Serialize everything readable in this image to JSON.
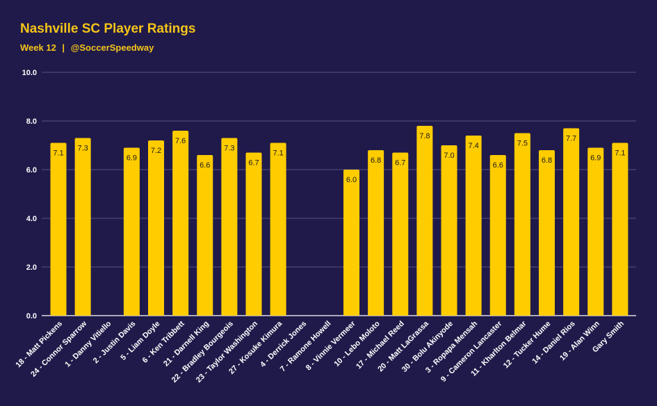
{
  "header": {
    "title": "Nashville SC Player Ratings",
    "subtitle_week": "Week 12",
    "subtitle_sep": "|",
    "subtitle_handle": "@SoccerSpeedway"
  },
  "colors": {
    "background": "#201a4a",
    "bar": "#ffcc00",
    "accent_text": "#f5c518",
    "grid": "#6b6590"
  },
  "chart_data": {
    "type": "bar",
    "title": "Nashville SC Player Ratings",
    "subtitle": "Week 12 | @SoccerSpeedway",
    "xlabel": "",
    "ylabel": "",
    "ylim": [
      0,
      10
    ],
    "yticks": [
      "0.0",
      "2.0",
      "4.0",
      "6.0",
      "8.0",
      "10.0"
    ],
    "grid": true,
    "legend": "none",
    "categories": [
      "18 - Matt Pickens",
      "24 - Connor Sparrow",
      "1 - Danny Vitiello",
      "2 - Justin Davis",
      "5 - Liam Doyle",
      "6 - Ken Tribbett",
      "21 - Darnell King",
      "22 - Bradley Bourgeois",
      "23 - Taylor Washington",
      "27 - Kosuke Kimura",
      "4 - Derrick Jones",
      "7 - Ramone Howell",
      "8 - Vinnie Vermeer",
      "10 - Lebo Moloto",
      "17 - Michael Reed",
      "20 - Matt LaGrassa",
      "30 - Bolu Akinyode",
      "3 - Ropapa Mensah",
      "9 - Cameron Lancaster",
      "11 - Kharlton Belmar",
      "12 - Tucker Hume",
      "14 - Daniel Rios",
      "19 - Alan Winn",
      "Gary Smith"
    ],
    "values": [
      7.1,
      7.3,
      null,
      6.9,
      7.2,
      7.6,
      6.6,
      7.3,
      6.7,
      7.1,
      null,
      null,
      6.0,
      6.8,
      6.7,
      7.8,
      7.0,
      7.4,
      6.6,
      7.5,
      6.8,
      7.7,
      6.9,
      7.1
    ],
    "value_labels": [
      "7.1",
      "7.3",
      "",
      "6.9",
      "7.2",
      "7.6",
      "6.6",
      "7.3",
      "6.7",
      "7.1",
      "",
      "",
      "6.0",
      "6.8",
      "6.7",
      "7.8",
      "7.0",
      "7.4",
      "6.6",
      "7.5",
      "6.8",
      "7.7",
      "6.9",
      "7.1"
    ]
  }
}
